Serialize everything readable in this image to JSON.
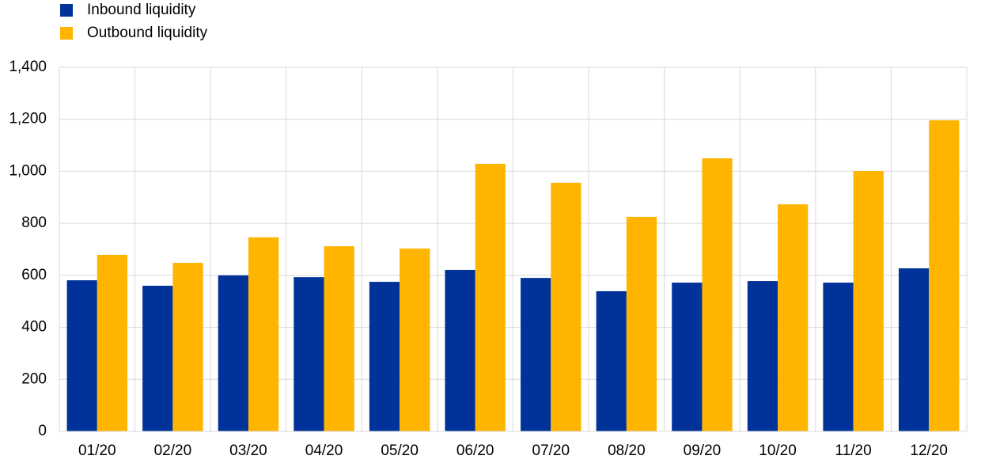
{
  "chart_data": {
    "type": "bar",
    "categories": [
      "01/20",
      "02/20",
      "03/20",
      "04/20",
      "05/20",
      "06/20",
      "07/20",
      "08/20",
      "09/20",
      "10/20",
      "11/20",
      "12/20"
    ],
    "series": [
      {
        "name": "Inbound liquidity",
        "color": "#003299",
        "values": [
          581,
          560,
          600,
          593,
          575,
          621,
          590,
          539,
          572,
          578,
          572,
          627
        ]
      },
      {
        "name": "Outbound liquidity",
        "color": "#ffb400",
        "values": [
          679,
          648,
          746,
          712,
          703,
          1029,
          956,
          825,
          1050,
          873,
          1001,
          1196
        ]
      }
    ],
    "ylim": [
      0,
      1400
    ],
    "yticks": [
      0,
      200,
      400,
      600,
      800,
      {
        "value": 1000,
        "label": "1,000"
      },
      {
        "value": 1200,
        "label": "1,200"
      },
      {
        "value": 1400,
        "label": "1,400"
      }
    ],
    "grid": true,
    "legend": "top-left"
  }
}
